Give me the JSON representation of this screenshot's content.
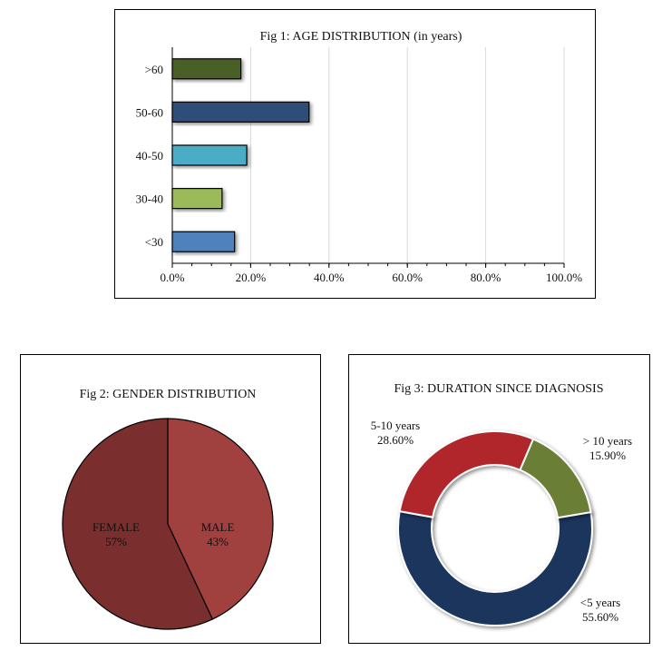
{
  "chart_data": [
    {
      "type": "bar",
      "orientation": "horizontal",
      "title": "Fig 1: AGE DISTRIBUTION (in years)",
      "categories": [
        ">60",
        "50-60",
        "40-50",
        "30-40",
        "<30"
      ],
      "values": [
        17.5,
        34.9,
        19.0,
        12.7,
        15.9
      ],
      "colors": [
        "#4a5e28",
        "#2d4e78",
        "#4bacc6",
        "#9bbb59",
        "#4f81bd"
      ],
      "xlim": [
        0,
        100
      ],
      "xticks": [
        "0.0%",
        "20.0%",
        "40.0%",
        "60.0%",
        "80.0%",
        "100.0%"
      ],
      "grid": true
    },
    {
      "type": "pie",
      "title": "Fig 2: GENDER DISTRIBUTION",
      "labels": [
        "MALE",
        "FEMALE"
      ],
      "values": [
        43,
        57
      ],
      "value_labels": [
        "43%",
        "57%"
      ],
      "colors": [
        "#a0403f",
        "#7b2e2e"
      ]
    },
    {
      "type": "pie",
      "subtype": "donut",
      "title": "Fig 3: DURATION SINCE DIAGNOSIS",
      "labels": [
        "<5 years",
        "5-10 years",
        "> 10 years"
      ],
      "values": [
        55.6,
        28.6,
        15.9
      ],
      "value_labels": [
        "55.60%",
        "28.60%",
        "15.90%"
      ],
      "colors": [
        "#1b365d",
        "#b0262a",
        "#6a7f34"
      ]
    }
  ]
}
